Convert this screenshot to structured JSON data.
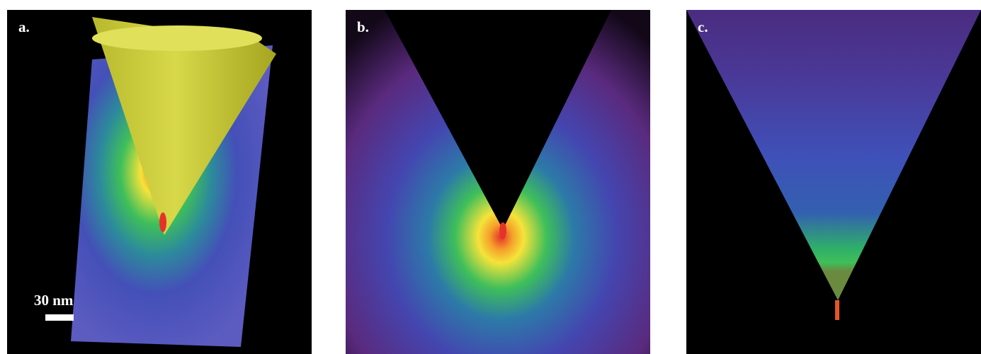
{
  "panels": [
    {
      "label": "a."
    },
    {
      "label": "b."
    },
    {
      "label": "c."
    }
  ],
  "scale_bar": {
    "text": "30 nm"
  },
  "colors": {
    "background": "#000000",
    "field_low": "#4b4fb8",
    "field_mid": "#2fae6a",
    "field_high": "#f5e33a",
    "field_peak": "#e4332a",
    "cone": "#d2d23a",
    "outer_halo": "#5a2a7e"
  }
}
